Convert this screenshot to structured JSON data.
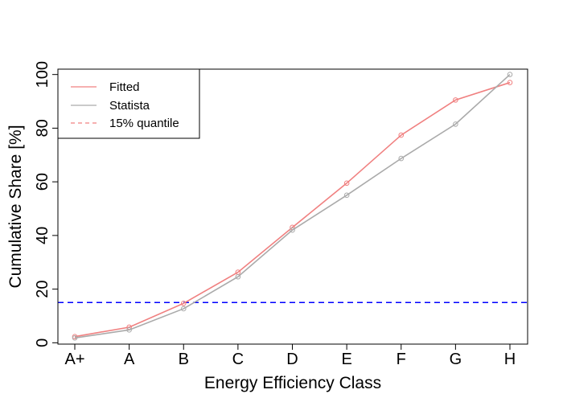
{
  "chart_data": {
    "type": "line",
    "title": "",
    "xlabel": "Energy Efficiency Class",
    "ylabel": "Cumulative Share [%]",
    "categories": [
      "A+",
      "A",
      "B",
      "C",
      "D",
      "E",
      "F",
      "G",
      "H"
    ],
    "ylim": [
      -0.5,
      102
    ],
    "yticks": [
      0,
      20,
      40,
      60,
      80,
      100
    ],
    "grid": false,
    "legend_position": "top-left",
    "series": [
      {
        "name": "Fitted",
        "color": "#f08080",
        "marker": "open-circle",
        "line_style": "solid",
        "values": [
          2.3,
          5.8,
          14.7,
          26.3,
          43.0,
          59.5,
          77.4,
          90.5,
          97.0
        ]
      },
      {
        "name": "Statista",
        "color": "#aaaaaa",
        "marker": "open-circle",
        "line_style": "solid",
        "values": [
          1.8,
          4.8,
          12.7,
          24.6,
          42.0,
          55.0,
          68.7,
          81.5,
          100.0
        ]
      }
    ],
    "reference_lines": [
      {
        "name": "15% quantile",
        "orientation": "horizontal",
        "value": 15,
        "color": "#0000ff",
        "legend_color": "#f08080",
        "line_style": "dashed"
      }
    ]
  }
}
